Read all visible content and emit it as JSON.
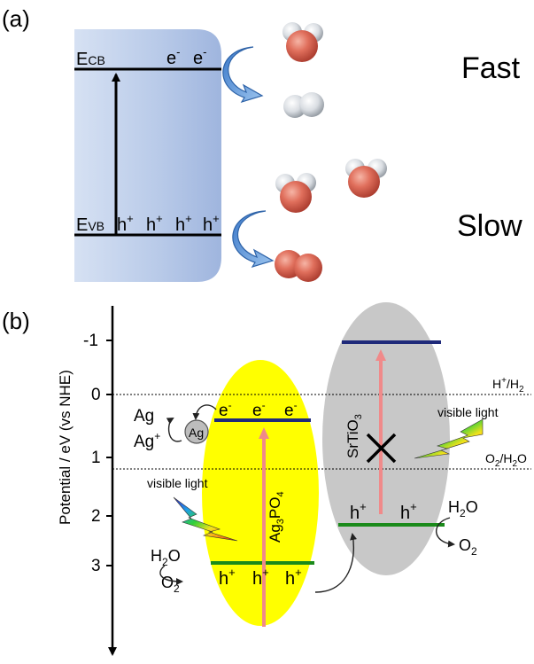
{
  "panel_a": {
    "label": "(a)",
    "e_cb": {
      "main": "E",
      "sub": "CB"
    },
    "e_vb": {
      "main": "E",
      "sub": "VB"
    },
    "electrons": "e",
    "electron_sup": "-",
    "holes_text": "h",
    "hole_sup": "+",
    "fast_label": "Fast",
    "slow_label": "Slow"
  },
  "panel_b": {
    "label": "(b)",
    "y_axis_label": "Potential / eV (vs NHE)",
    "y_ticks": [
      "-1",
      "0",
      "1",
      "2",
      "3"
    ],
    "h_couple": {
      "top": "H",
      "sup": "+",
      "rest": "/H",
      "sub": "2"
    },
    "o_couple": {
      "a": "O",
      "sub1": "2",
      "b": "/H",
      "sub2": "2",
      "c": "O"
    },
    "ag_text": "Ag",
    "ag_ion_sup": "+",
    "visible_light_left": "visible light",
    "visible_light_right": "visible light",
    "ag3po4": {
      "a": "Ag",
      "s1": "3",
      "b": "PO",
      "s2": "4"
    },
    "srtio3": {
      "a": "SrTiO",
      "s1": "3"
    },
    "h2o_left": {
      "a": "H",
      "sub": "2",
      "b": "O"
    },
    "o2_left": {
      "a": "O",
      "sub": "2"
    },
    "h2o_right": {
      "a": "H",
      "sub": "2",
      "b": "O"
    },
    "o2_right": {
      "a": "O",
      "sub": "2"
    }
  },
  "colors": {
    "ag3po4_fill": "#ffff00",
    "srtio3_fill": "#c8c8c8",
    "cb_blue": "#1f2a7a",
    "vb_green": "#1a8a1a",
    "arrow_pink": "#f08a8a",
    "panel_a_box": "#a9bde0"
  }
}
